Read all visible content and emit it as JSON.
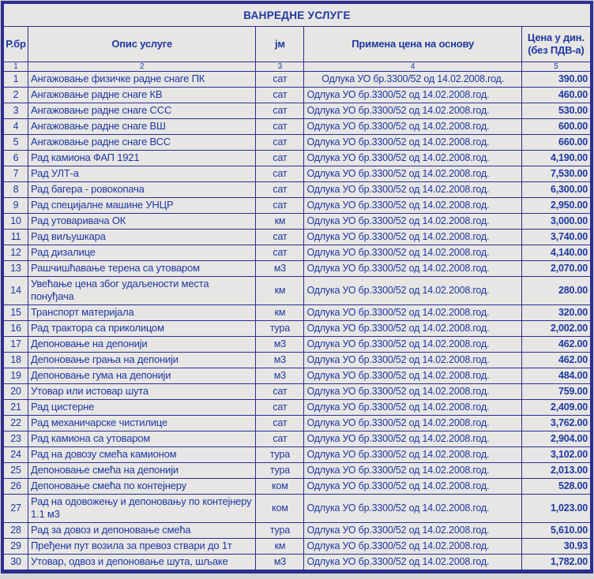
{
  "colors": {
    "page_bg": "#d6d6d4",
    "cell_bg": "#e7e6e4",
    "border": "#2b2e8f",
    "text": "#1e38a2"
  },
  "title": "ВАНРЕДНЕ УСЛУГЕ",
  "table": {
    "header": {
      "num": "Р.бр",
      "desc": "Опис услуге",
      "unit": "јм",
      "basis": "Примена цена на основу",
      "price_line1": "Цена у дин.",
      "price_line2": "(без ПДВ-а)"
    },
    "column_numbers": [
      "1",
      "2",
      "3",
      "4",
      "5"
    ],
    "rows": [
      {
        "num": "1",
        "desc": "Ангажовање физичке радне снаге ПК",
        "unit": "сат",
        "basis": "Одлука УО бр.3300/52 од 14.02.2008.год.",
        "price": "390.00"
      },
      {
        "num": "2",
        "desc": "Ангажовање радне снаге КВ",
        "unit": "сат",
        "basis": "Одлука УО бр.3300/52 од 14.02.2008.год.",
        "price": "460.00"
      },
      {
        "num": "3",
        "desc": "Ангажовање радне снаге ССС",
        "unit": "сат",
        "basis": "Одлука УО бр.3300/52 од 14.02.2008.год.",
        "price": "530.00"
      },
      {
        "num": "4",
        "desc": "Ангажовање радне снаге ВШ",
        "unit": "сат",
        "basis": "Одлука УО бр.3300/52 од 14.02.2008.год.",
        "price": "600.00"
      },
      {
        "num": "5",
        "desc": "Ангажовање радне снаге ВСС",
        "unit": "сат",
        "basis": "Одлука УО бр.3300/52 од 14.02.2008.год.",
        "price": "660.00"
      },
      {
        "num": "6",
        "desc": "Рад камиона ФАП 1921",
        "unit": "сат",
        "basis": "Одлука УО бр.3300/52 од 14.02.2008.год.",
        "price": "4,190.00"
      },
      {
        "num": "7",
        "desc": "Рад УЛТ-а",
        "unit": "сат",
        "basis": "Одлука УО бр.3300/52 од 14.02.2008.год.",
        "price": "7,530.00"
      },
      {
        "num": "8",
        "desc": "Рад багера - ровокопача",
        "unit": "сат",
        "basis": "Одлука УО бр.3300/52 од 14.02.2008.год.",
        "price": "6,300.00"
      },
      {
        "num": "9",
        "desc": "Рад специјалне машине УНЦР",
        "unit": "сат",
        "basis": "Одлука УО бр.3300/52 од 14.02.2008.год.",
        "price": "2,950.00"
      },
      {
        "num": "10",
        "desc": "Рад утоваривача ОК",
        "unit": "км",
        "basis": "Одлука УО бр.3300/52 од 14.02.2008.год.",
        "price": "3,000.00"
      },
      {
        "num": "11",
        "desc": "Рад виљушкара",
        "unit": "сат",
        "basis": "Одлука УО бр.3300/52 од 14.02.2008.год.",
        "price": "3,740.00"
      },
      {
        "num": "12",
        "desc": "Рад дизалице",
        "unit": "сат",
        "basis": "Одлука УО бр.3300/52 од 14.02.2008.год.",
        "price": "4,140.00"
      },
      {
        "num": "13",
        "desc": "Рашчишћавање терена са утоваром",
        "unit": "м3",
        "basis": "Одлука УО бр.3300/52 од 14.02.2008.год.",
        "price": "2,070.00"
      },
      {
        "num": "14",
        "desc": "Увећање цена због удаљености места понуђача",
        "unit": "км",
        "basis": "Одлука УО бр.3300/52 од 14.02.2008.год.",
        "price": "280.00"
      },
      {
        "num": "15",
        "desc": "Транспорт материјала",
        "unit": "км",
        "basis": "Одлука УО бр.3300/52 од 14.02.2008.год.",
        "price": "320.00"
      },
      {
        "num": "16",
        "desc": "Рад трактора са приколицом",
        "unit": "тура",
        "basis": "Одлука УО бр.3300/52 од 14.02.2008.год.",
        "price": "2,002.00"
      },
      {
        "num": "17",
        "desc": "Депоновање на депонији",
        "unit": "м3",
        "basis": "Одлука УО бр.3300/52 од 14.02.2008.год.",
        "price": "462.00"
      },
      {
        "num": "18",
        "desc": "Депоновање грања на депонији",
        "unit": "м3",
        "basis": "Одлука УО бр.3300/52 од 14.02.2008.год.",
        "price": "462.00"
      },
      {
        "num": "19",
        "desc": "Депоновање гума на депонији",
        "unit": "м3",
        "basis": "Одлука УО бр.3300/52 од 14.02.2008.год.",
        "price": "484.00"
      },
      {
        "num": "20",
        "desc": "Утовар или истовар шута",
        "unit": "сат",
        "basis": "Одлука УО бр.3300/52 од 14.02.2008.год.",
        "price": "759.00"
      },
      {
        "num": "21",
        "desc": "Рад цистерне",
        "unit": "сат",
        "basis": "Одлука УО бр.3300/52 од 14.02.2008.год.",
        "price": "2,409.00"
      },
      {
        "num": "22",
        "desc": "Рад механичарске чистилице",
        "unit": "сат",
        "basis": "Одлука УО бр.3300/52 од 14.02.2008.год.",
        "price": "3,762.00"
      },
      {
        "num": "23",
        "desc": "Рад камиона са утоваром",
        "unit": "сат",
        "basis": "Одлука УО бр.3300/52 од 14.02.2008.год.",
        "price": "2,904.00"
      },
      {
        "num": "24",
        "desc": "Рад на довозу смећа камионом",
        "unit": "тура",
        "basis": "Одлука УО бр.3300/52 од 14.02.2008.год.",
        "price": "3,102.00"
      },
      {
        "num": "25",
        "desc": "Депоновање смећа на депонији",
        "unit": "тура",
        "basis": "Одлука УО бр.3300/52 од 14.02.2008.год.",
        "price": "2,013.00"
      },
      {
        "num": "26",
        "desc": "Депоновање смећа по контејнеру",
        "unit": "ком",
        "basis": "Одлука УО бр.3300/52 од 14.02.2008.год.",
        "price": "528.00"
      },
      {
        "num": "27",
        "desc": "Рад на одовожењу и депоновању по контејнеру 1.1 м3",
        "unit": "ком",
        "basis": "Одлука УО бр.3300/52 од 14.02.2008.год.",
        "price": "1,023.00"
      },
      {
        "num": "28",
        "desc": "Рад за довоз и депоновање смећа",
        "unit": "тура",
        "basis": "Одлука УО бр.3300/52 од 14.02.2008.год.",
        "price": "5,610.00"
      },
      {
        "num": "29",
        "desc": "Пређени пут возила за превоз ствари до 1т",
        "unit": "км",
        "basis": "Одлука УО бр.3300/52 од 14.02.2008.год.",
        "price": "30.93"
      },
      {
        "num": "30",
        "desc": "Утовар, одвоз и депоновање шута, шљаке",
        "unit": "м3",
        "basis": "Одлука УО бр.3300/52 од 14.02.2008.год.",
        "price": "1,782.00"
      }
    ]
  }
}
